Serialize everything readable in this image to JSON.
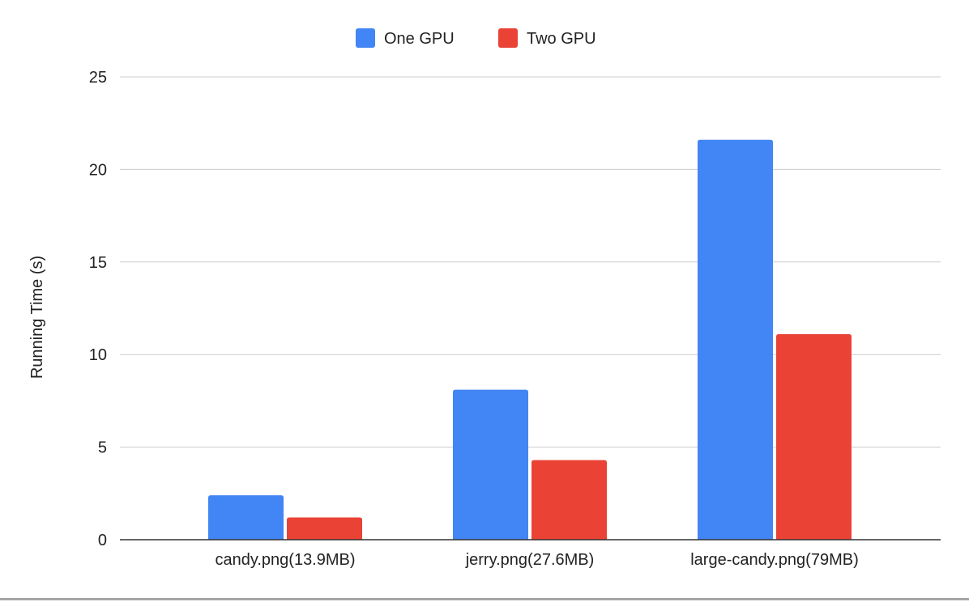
{
  "chart_data": {
    "type": "bar",
    "title": "",
    "xlabel": "",
    "ylabel": "Running Time (s)",
    "ylim": [
      0,
      25
    ],
    "yticks": [
      0,
      5,
      10,
      15,
      20,
      25
    ],
    "grid": true,
    "legend_position": "top-center",
    "categories": [
      "candy.png(13.9MB)",
      "jerry.png(27.6MB)",
      "large-candy.png(79MB)"
    ],
    "series": [
      {
        "name": "One GPU",
        "color": "#4285f4",
        "values": [
          2.4,
          8.1,
          21.6
        ]
      },
      {
        "name": "Two GPU",
        "color": "#ea4335",
        "values": [
          1.2,
          4.3,
          11.1
        ]
      }
    ],
    "colors": {
      "grid": "#cccccc",
      "axis": "#333333",
      "text": "#222222"
    }
  }
}
